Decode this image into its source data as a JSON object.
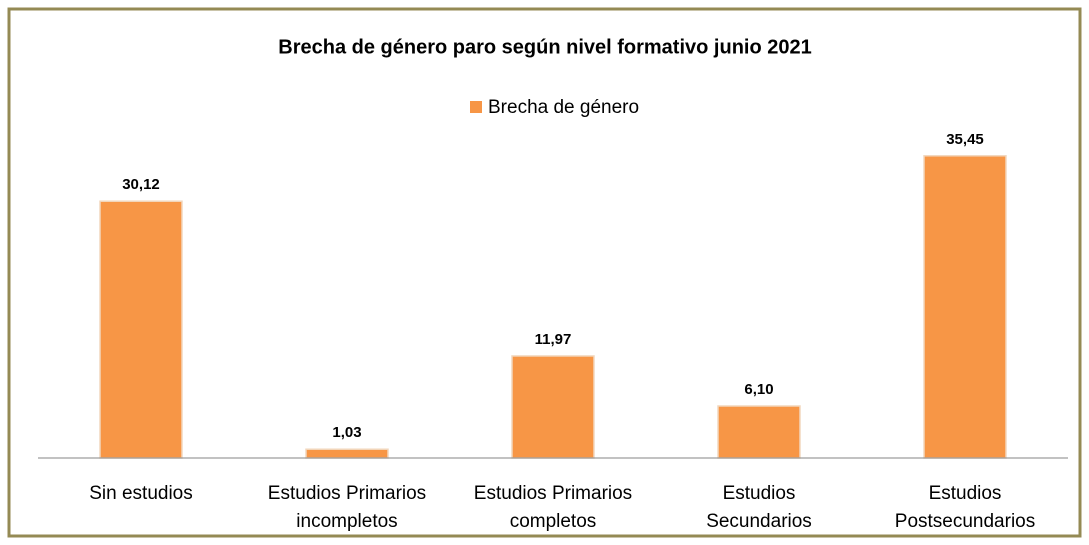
{
  "chart_data": {
    "type": "bar",
    "title": "Brecha de género paro según nivel formativo  junio 2021",
    "categories": [
      "Sin estudios",
      "Estudios Primarios\nincompletos",
      "Estudios Primarios\ncompletos",
      "Estudios\nSecundarios",
      "Estudios\nPostsecundarios"
    ],
    "series": [
      {
        "name": "Brecha de género",
        "color": "#f79646",
        "values": [
          30.12,
          1.03,
          11.97,
          6.1,
          35.45
        ],
        "value_labels": [
          "30,12",
          "1,03",
          "11,97",
          "6,10",
          "35,45"
        ]
      }
    ],
    "ylim": [
      0,
      40
    ],
    "legend": "top"
  }
}
